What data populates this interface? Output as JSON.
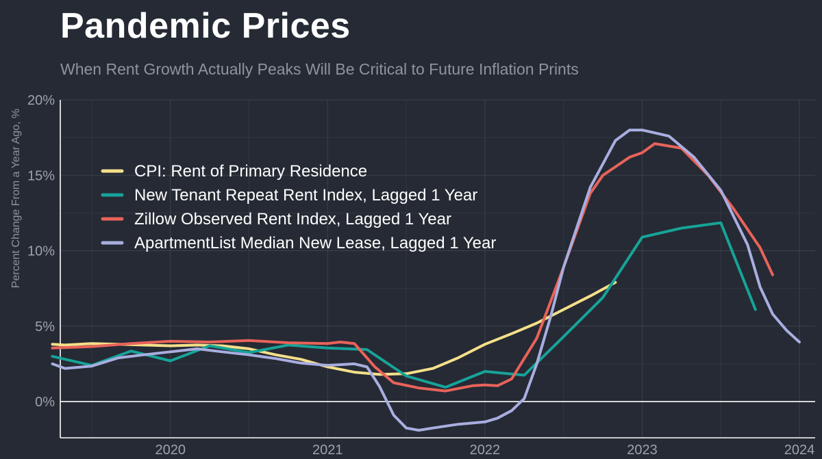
{
  "chart_data": {
    "type": "line",
    "title": "Pandemic Prices",
    "subtitle": "When Rent Growth Actually Peaks Will Be Critical to Future Inflation Prints",
    "ylabel": "Percent Change From a Year Ago, %",
    "xlabel": "",
    "xlim": [
      2019.3,
      2024.1
    ],
    "ylim": [
      -2.4,
      20
    ],
    "x_ticks": [
      2020,
      2021,
      2022,
      2023,
      2024
    ],
    "x_tick_labels": [
      "2020",
      "2021",
      "2022",
      "2023",
      "2024"
    ],
    "y_ticks": [
      0,
      5,
      10,
      15,
      20
    ],
    "y_tick_labels": [
      "0%",
      "5%",
      "10%",
      "15%",
      "20%"
    ],
    "grid": true,
    "legend_position": "upper-left",
    "series": [
      {
        "name": "CPI: Rent of Primary Residence",
        "color": "#f5e08a",
        "points": [
          [
            2019.25,
            3.8
          ],
          [
            2019.33,
            3.75
          ],
          [
            2019.42,
            3.8
          ],
          [
            2019.5,
            3.85
          ],
          [
            2019.67,
            3.8
          ],
          [
            2019.83,
            3.75
          ],
          [
            2020.0,
            3.7
          ],
          [
            2020.17,
            3.75
          ],
          [
            2020.33,
            3.7
          ],
          [
            2020.5,
            3.5
          ],
          [
            2020.67,
            3.1
          ],
          [
            2020.83,
            2.8
          ],
          [
            2021.0,
            2.3
          ],
          [
            2021.17,
            1.95
          ],
          [
            2021.33,
            1.8
          ],
          [
            2021.5,
            1.85
          ],
          [
            2021.67,
            2.2
          ],
          [
            2021.83,
            2.9
          ],
          [
            2022.0,
            3.8
          ],
          [
            2022.17,
            4.5
          ],
          [
            2022.33,
            5.2
          ],
          [
            2022.5,
            6.1
          ],
          [
            2022.67,
            7.0
          ],
          [
            2022.83,
            7.9
          ]
        ]
      },
      {
        "name": "New Tenant Repeat Rent Index, Lagged 1 Year",
        "color": "#17a398",
        "points": [
          [
            2019.25,
            3.0
          ],
          [
            2019.5,
            2.4
          ],
          [
            2019.75,
            3.35
          ],
          [
            2020.0,
            2.7
          ],
          [
            2020.25,
            3.7
          ],
          [
            2020.5,
            3.25
          ],
          [
            2020.75,
            3.75
          ],
          [
            2021.0,
            3.55
          ],
          [
            2021.25,
            3.45
          ],
          [
            2021.5,
            1.7
          ],
          [
            2021.75,
            0.95
          ],
          [
            2022.0,
            2.0
          ],
          [
            2022.25,
            1.75
          ],
          [
            2022.5,
            4.3
          ],
          [
            2022.75,
            6.9
          ],
          [
            2023.0,
            10.9
          ],
          [
            2023.25,
            11.5
          ],
          [
            2023.5,
            11.85
          ],
          [
            2023.72,
            6.1
          ]
        ]
      },
      {
        "name": "Zillow Observed Rent Index, Lagged 1 Year",
        "color": "#e8635a",
        "points": [
          [
            2019.25,
            3.55
          ],
          [
            2019.5,
            3.65
          ],
          [
            2019.75,
            3.85
          ],
          [
            2020.0,
            4.0
          ],
          [
            2020.25,
            3.95
          ],
          [
            2020.5,
            4.05
          ],
          [
            2020.75,
            3.9
          ],
          [
            2021.0,
            3.85
          ],
          [
            2021.08,
            3.95
          ],
          [
            2021.17,
            3.85
          ],
          [
            2021.3,
            2.3
          ],
          [
            2021.42,
            1.25
          ],
          [
            2021.58,
            0.9
          ],
          [
            2021.75,
            0.7
          ],
          [
            2021.92,
            1.05
          ],
          [
            2022.0,
            1.1
          ],
          [
            2022.08,
            1.05
          ],
          [
            2022.17,
            1.5
          ],
          [
            2022.33,
            4.2
          ],
          [
            2022.5,
            8.9
          ],
          [
            2022.67,
            13.8
          ],
          [
            2022.75,
            15.0
          ],
          [
            2022.92,
            16.2
          ],
          [
            2023.0,
            16.5
          ],
          [
            2023.08,
            17.1
          ],
          [
            2023.25,
            16.8
          ],
          [
            2023.42,
            15.0
          ],
          [
            2023.58,
            12.8
          ],
          [
            2023.75,
            10.2
          ],
          [
            2023.83,
            8.4
          ]
        ]
      },
      {
        "name": "ApartmentList Median New Lease, Lagged 1 Year",
        "color": "#a9aee0",
        "points": [
          [
            2019.25,
            2.5
          ],
          [
            2019.33,
            2.2
          ],
          [
            2019.5,
            2.35
          ],
          [
            2019.67,
            2.9
          ],
          [
            2019.83,
            3.1
          ],
          [
            2020.0,
            3.3
          ],
          [
            2020.17,
            3.5
          ],
          [
            2020.33,
            3.3
          ],
          [
            2020.5,
            3.1
          ],
          [
            2020.67,
            2.85
          ],
          [
            2020.83,
            2.55
          ],
          [
            2021.0,
            2.4
          ],
          [
            2021.17,
            2.5
          ],
          [
            2021.25,
            2.3
          ],
          [
            2021.33,
            1.0
          ],
          [
            2021.42,
            -0.9
          ],
          [
            2021.5,
            -1.75
          ],
          [
            2021.58,
            -1.9
          ],
          [
            2021.67,
            -1.75
          ],
          [
            2021.83,
            -1.5
          ],
          [
            2022.0,
            -1.35
          ],
          [
            2022.08,
            -1.1
          ],
          [
            2022.17,
            -0.6
          ],
          [
            2022.25,
            0.2
          ],
          [
            2022.33,
            2.5
          ],
          [
            2022.42,
            5.7
          ],
          [
            2022.5,
            8.9
          ],
          [
            2022.67,
            14.2
          ],
          [
            2022.83,
            17.3
          ],
          [
            2022.92,
            18.0
          ],
          [
            2023.0,
            18.0
          ],
          [
            2023.17,
            17.6
          ],
          [
            2023.33,
            16.2
          ],
          [
            2023.5,
            14.0
          ],
          [
            2023.67,
            10.4
          ],
          [
            2023.75,
            7.6
          ],
          [
            2023.83,
            5.8
          ],
          [
            2023.92,
            4.7
          ],
          [
            2024.0,
            3.95
          ]
        ]
      }
    ]
  }
}
